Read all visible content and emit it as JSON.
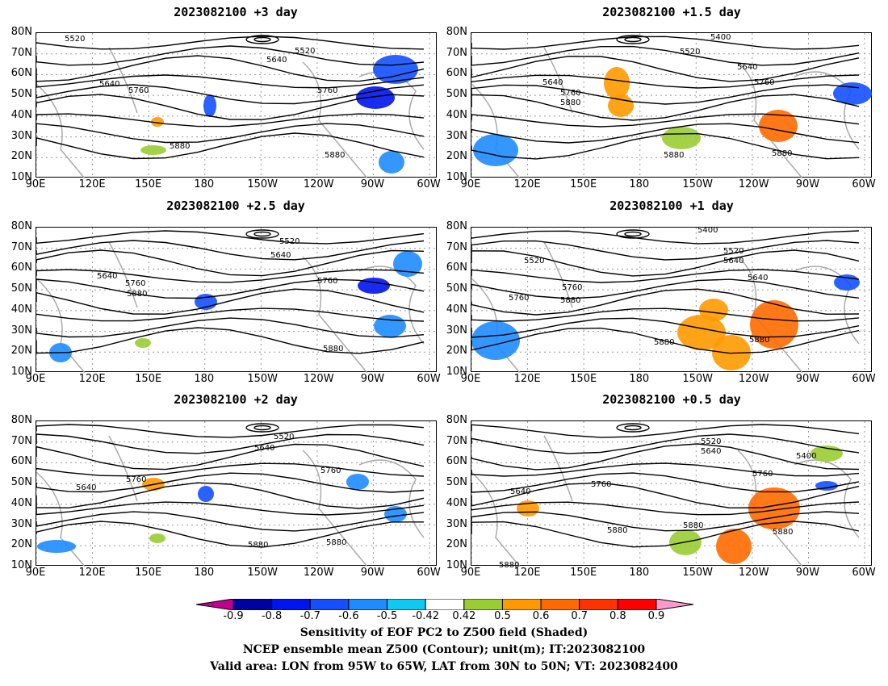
{
  "panels": [
    {
      "title": "2023082100 +3 day",
      "contour_labels": [
        "5520",
        "5520",
        "5640",
        "5640",
        "5760",
        "5760",
        "5880",
        "5880"
      ]
    },
    {
      "title": "2023082100 +1.5 day",
      "contour_labels": [
        "5400",
        "5520",
        "5640",
        "5640",
        "5760",
        "5760",
        "5880",
        "5880",
        "5880"
      ]
    },
    {
      "title": "2023082100 +2.5 day",
      "contour_labels": [
        "5520",
        "5640",
        "5640",
        "5760",
        "5760",
        "5880",
        "5880"
      ]
    },
    {
      "title": "2023082100 +1 day",
      "contour_labels": [
        "5400",
        "5520",
        "5520",
        "5640",
        "5640",
        "5760",
        "5760",
        "5880",
        "5880",
        "5880"
      ]
    },
    {
      "title": "2023082100 +2 day",
      "contour_labels": [
        "5520",
        "5640",
        "5640",
        "5760",
        "5760",
        "5880",
        "5880"
      ]
    },
    {
      "title": "2023082100 +0.5 day",
      "contour_labels": [
        "5520",
        "5640",
        "5400",
        "5640",
        "5760",
        "5760",
        "5880",
        "5880",
        "5880",
        "5880"
      ]
    }
  ],
  "lat_labels": [
    "80N",
    "70N",
    "60N",
    "50N",
    "40N",
    "30N",
    "20N",
    "10N"
  ],
  "lon_labels": [
    "90E",
    "120E",
    "150E",
    "180",
    "150W",
    "120W",
    "90W",
    "60W"
  ],
  "colorbar": {
    "ticks": [
      "-0.9",
      "-0.8",
      "-0.7",
      "-0.6",
      "-0.5",
      "-0.42",
      "0.42",
      "0.5",
      "0.6",
      "0.7",
      "0.8",
      "0.9"
    ],
    "colors": [
      "#c00090",
      "#0000a0",
      "#0014f0",
      "#1450ff",
      "#1e8cff",
      "#10c8f0",
      "#ffffff",
      "#9acd32",
      "#ff9900",
      "#ff6a00",
      "#ff3300",
      "#ff0000",
      "#ff99cc"
    ]
  },
  "caption": {
    "line1": "Sensitivity of EOF PC2 to Z500 field (Shaded)",
    "line2": "NCEP ensemble mean Z500 (Contour); unit(m); IT:2023082100",
    "line3": "Valid area: LON from 95W to 65W, LAT from 30N to 50N; VT: 2023082400"
  }
}
